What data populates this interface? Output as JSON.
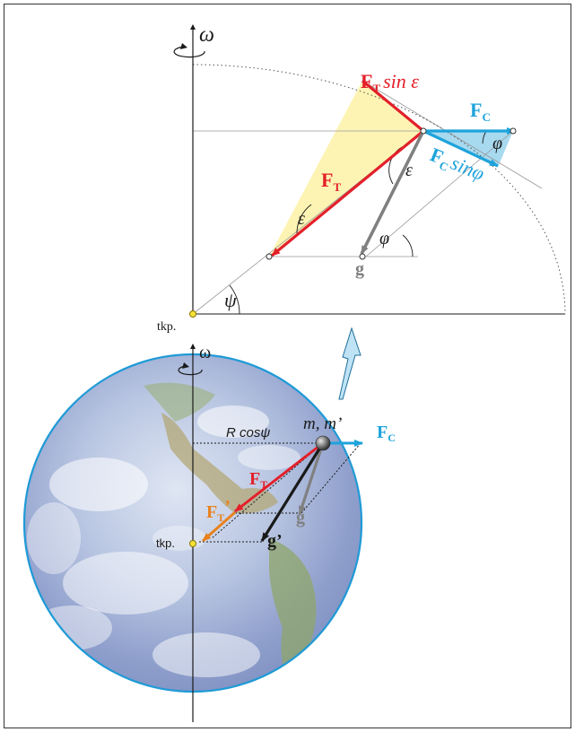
{
  "colors": {
    "red": "#e3202a",
    "blue": "#1ea3db",
    "orange": "#e8821e",
    "gray": "#808080",
    "black": "#1a1a1a",
    "triangle_yellow": "#fdf4b4",
    "triangle_blue": "#a7d9ef",
    "earth_outline": "#1f9ad6",
    "frame": "#333333"
  },
  "top": {
    "omega": "ω",
    "F_T_sin_eps": {
      "main": "F",
      "sub": "T",
      "rest": "sin ε"
    },
    "F_C": {
      "main": "F",
      "sub": "C"
    },
    "F_C_sin_phi": {
      "main": "F",
      "sub": "C",
      "rest": "sinφ"
    },
    "F_T": {
      "main": "F",
      "sub": "T"
    },
    "phi_upper": "φ",
    "phi_lower": "φ",
    "eps_upper": "ε",
    "eps_lower": "ε",
    "g": "g",
    "psi": "ψ",
    "center_label": "tkp."
  },
  "bottom": {
    "omega": "ω",
    "R_cos": "R cosψ",
    "mass": "m, m’",
    "F_C": {
      "main": "F",
      "sub": "C"
    },
    "F_T": {
      "main": "F",
      "sub": "T"
    },
    "F_T_prime": {
      "main": "F",
      "sub": "T",
      "prime": "’"
    },
    "g": "g",
    "g_prime": "g’",
    "center_label": "tkp."
  },
  "icons": {
    "up_arrow": "hollow-arrow-icon",
    "rotation": "rotation-arrow-icon"
  }
}
